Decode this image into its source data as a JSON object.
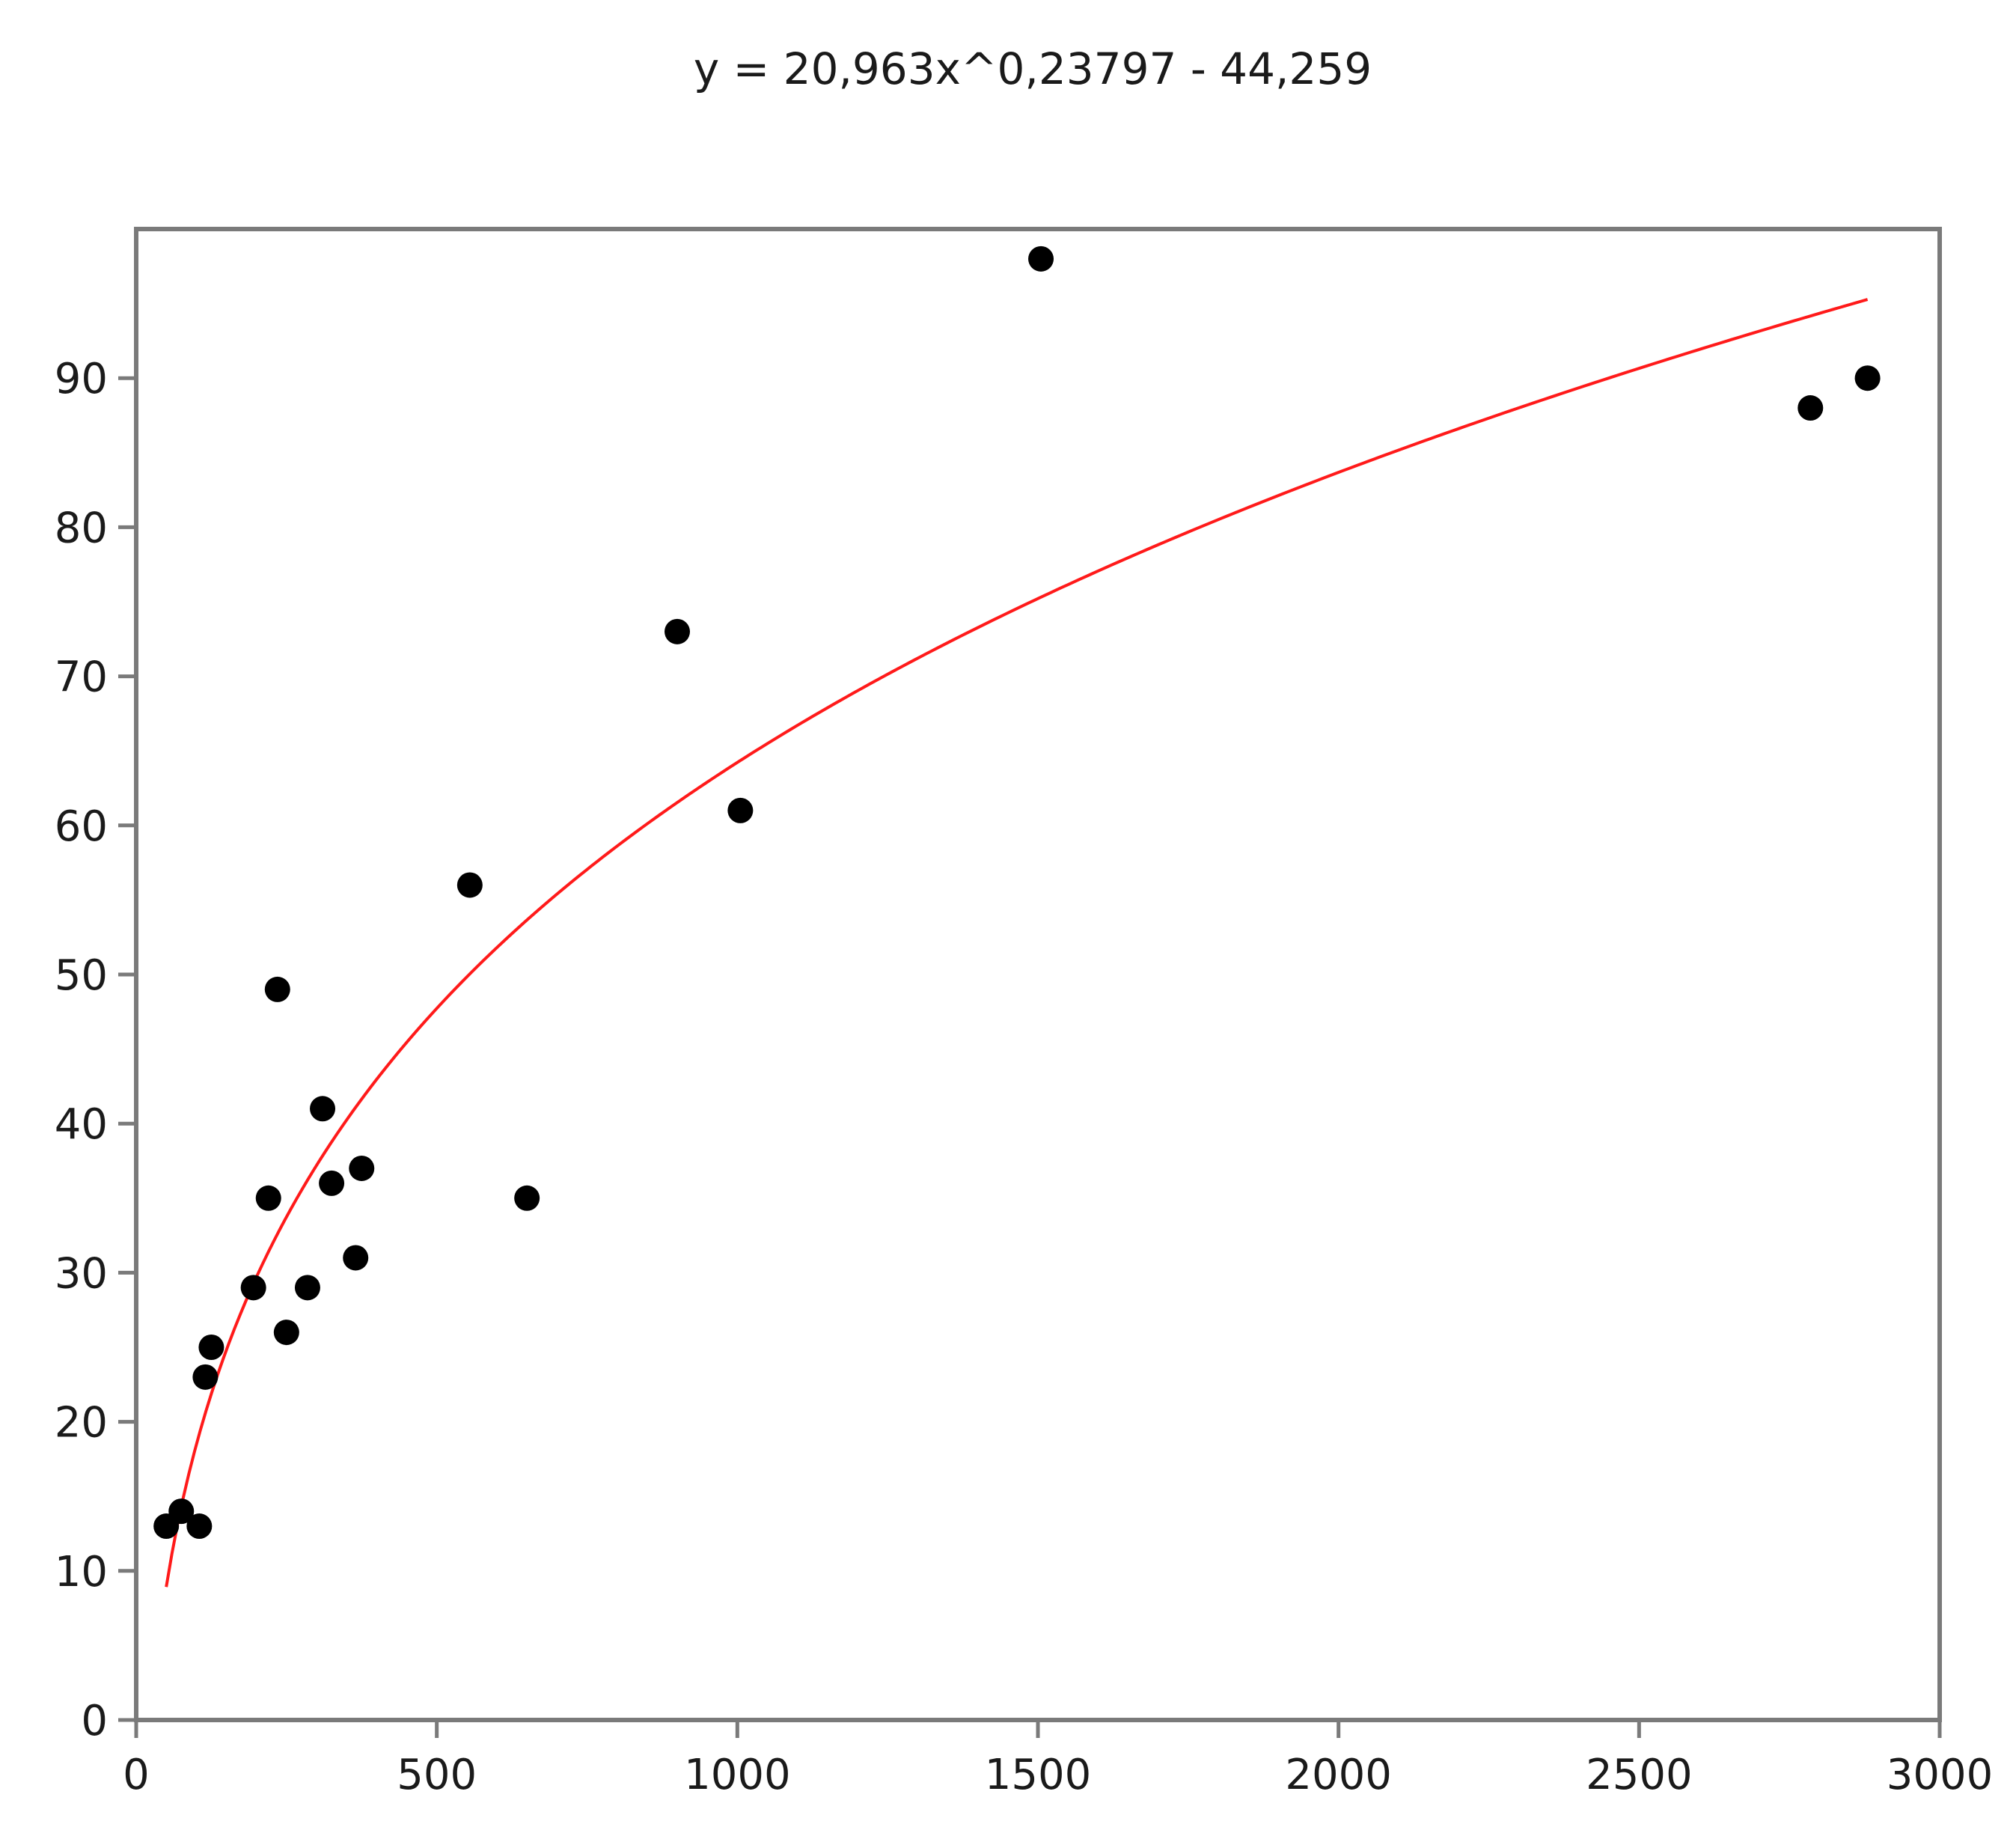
{
  "chart_data": {
    "type": "scatter",
    "title": "y = 20,963x^0,23797 - 44,259",
    "xlabel": "",
    "ylabel": "",
    "xlim": [
      0,
      3000
    ],
    "ylim": [
      0,
      100
    ],
    "x_ticks": [
      0,
      500,
      1000,
      1500,
      2000,
      2500,
      3000
    ],
    "x_tick_labels": [
      "0",
      "500",
      "1000",
      "1500",
      "2000",
      "2500",
      "3000"
    ],
    "y_ticks": [
      0,
      10,
      20,
      30,
      40,
      50,
      60,
      70,
      80,
      90
    ],
    "y_tick_labels": [
      "0",
      "10",
      "20",
      "30",
      "40",
      "50",
      "60",
      "70",
      "80",
      "90"
    ],
    "grid": false,
    "legend": "none",
    "points": [
      {
        "x": 50,
        "y": 13
      },
      {
        "x": 75,
        "y": 14
      },
      {
        "x": 105,
        "y": 13
      },
      {
        "x": 115,
        "y": 23
      },
      {
        "x": 125,
        "y": 25
      },
      {
        "x": 195,
        "y": 29
      },
      {
        "x": 220,
        "y": 35
      },
      {
        "x": 235,
        "y": 49
      },
      {
        "x": 250,
        "y": 26
      },
      {
        "x": 285,
        "y": 29
      },
      {
        "x": 310,
        "y": 41
      },
      {
        "x": 325,
        "y": 36
      },
      {
        "x": 365,
        "y": 31
      },
      {
        "x": 375,
        "y": 37
      },
      {
        "x": 555,
        "y": 56
      },
      {
        "x": 650,
        "y": 35
      },
      {
        "x": 900,
        "y": 73
      },
      {
        "x": 1005,
        "y": 61
      },
      {
        "x": 1505,
        "y": 98
      },
      {
        "x": 2785,
        "y": 88
      },
      {
        "x": 2880,
        "y": 90
      }
    ],
    "fit": {
      "a": 20.963,
      "b": 0.23797,
      "c": -44.259,
      "x_range": [
        50,
        2880
      ],
      "color": "#ff1a1a"
    },
    "point_color": "#000000",
    "axis_color": "#7a7a7a"
  }
}
